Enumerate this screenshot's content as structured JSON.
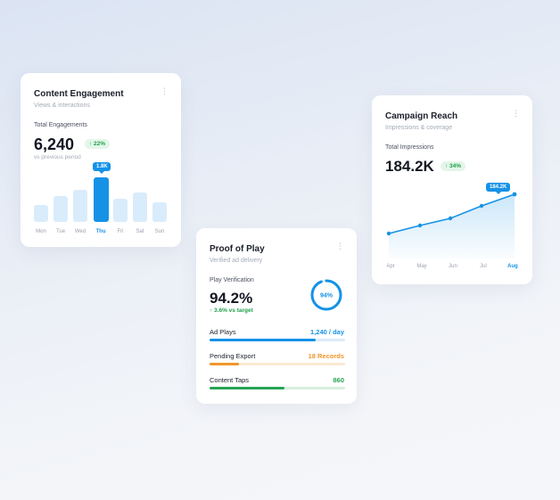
{
  "engagement": {
    "title": "Content Engagement",
    "subtitle": "Views & interactions",
    "menu_glyph": "⋮",
    "metric_label": "Total Engagements",
    "value": "6,240",
    "change": "↑ 22%",
    "comparison": "vs previous period",
    "tooltip": "1.8K",
    "days": [
      "Mon",
      "Tue",
      "Wed",
      "Thu",
      "Fri",
      "Sat",
      "Sun"
    ],
    "active_day_index": 3
  },
  "proof": {
    "title": "Proof of Play",
    "subtitle": "Verified ad delivery",
    "menu_glyph": "⋮",
    "metric_label": "Play Verification",
    "value": "94.2%",
    "target_change": "↑ 3.6% vs target",
    "ring_label": "94%",
    "ring_fraction": 0.94,
    "rows": [
      {
        "label": "Ad Plays",
        "value": "1,240 / day",
        "fraction": 0.78,
        "color": "#1592e6",
        "track": "#dcebf8"
      },
      {
        "label": "Pending Export",
        "value": "18 Records",
        "fraction": 0.22,
        "color": "#f0962a",
        "track": "#fbe9d3"
      },
      {
        "label": "Content Taps",
        "value": "860",
        "fraction": 0.55,
        "color": "#27a353",
        "track": "#d8efdf"
      }
    ]
  },
  "reach": {
    "title": "Campaign Reach",
    "subtitle": "Impressions & coverage",
    "menu_glyph": "⋮",
    "metric_label": "Total Impressions",
    "value": "184.2K",
    "change": "↑ 34%",
    "tooltip": "184.2K",
    "months": [
      "Apr",
      "May",
      "Jun",
      "Jul",
      "Aug"
    ],
    "active_month_index": 4
  },
  "colors": {
    "accent": "#1592e6",
    "positive": "#1fa14a",
    "warning": "#f0962a"
  }
}
